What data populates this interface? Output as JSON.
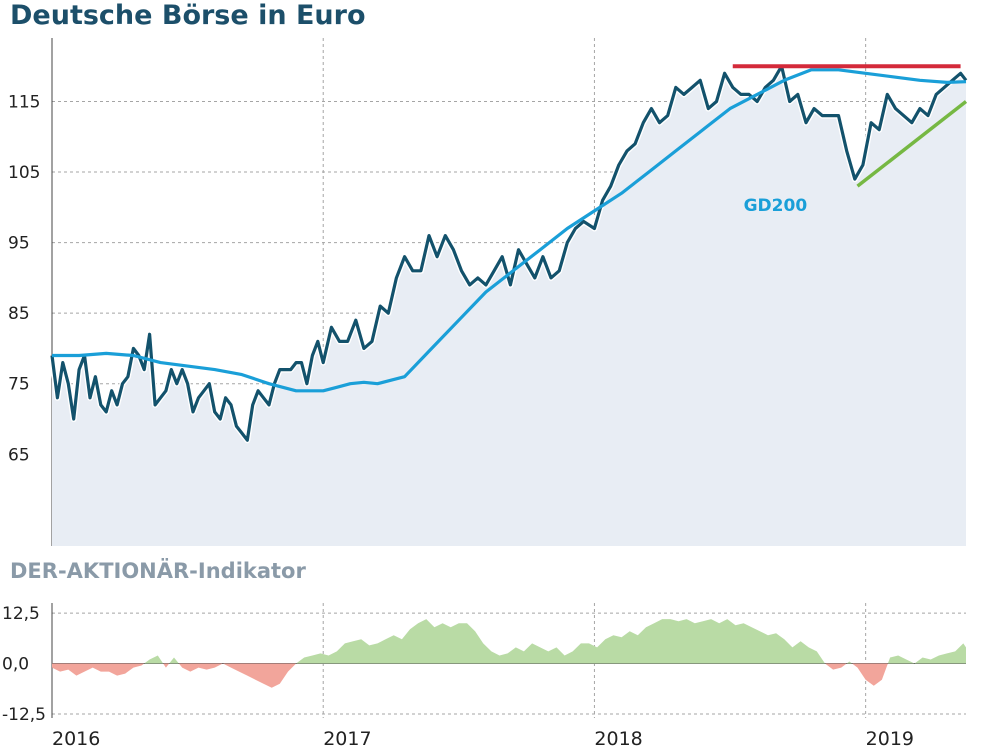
{
  "title": "Deutsche Börse in Euro",
  "colors": {
    "price_line": "#13526c",
    "gd200_line": "#1a9fd8",
    "area_fill": "#e8edf4",
    "resistance": "#d42a3a",
    "support": "#76b843",
    "indicator_positive": "#b9dba5",
    "indicator_negative": "#f2a59b",
    "grid": "#a5a5a5"
  },
  "chart_data": [
    {
      "type": "line",
      "title": "Deutsche Börse in Euro",
      "xlabel": "",
      "ylabel": "",
      "x_ticks": [
        "2016",
        "2017",
        "2018",
        "2019"
      ],
      "y_ticks": [
        65,
        75,
        85,
        95,
        105,
        115
      ],
      "ylim": [
        52,
        124
      ],
      "xlim": [
        2016.0,
        2019.37
      ],
      "grid": true,
      "annotations": [
        {
          "text": "GD200",
          "x": 2018.55,
          "y": 99.5
        },
        {
          "type": "resistance-line",
          "x": [
            2018.51,
            2019.35
          ],
          "y": [
            120,
            120
          ]
        },
        {
          "type": "support-line",
          "x": [
            2018.97,
            2019.37
          ],
          "y": [
            103,
            115
          ]
        }
      ],
      "series": [
        {
          "name": "",
          "x": [
            2016.0,
            2016.02,
            2016.04,
            2016.06,
            2016.08,
            2016.1,
            2016.12,
            2016.14,
            2016.16,
            2016.18,
            2016.2,
            2016.22,
            2016.24,
            2016.26,
            2016.28,
            2016.3,
            2016.32,
            2016.34,
            2016.36,
            2016.38,
            2016.4,
            2016.42,
            2016.44,
            2016.46,
            2016.48,
            2016.5,
            2016.52,
            2016.54,
            2016.56,
            2016.58,
            2016.6,
            2016.62,
            2016.64,
            2016.66,
            2016.68,
            2016.7,
            2016.72,
            2016.74,
            2016.76,
            2016.78,
            2016.8,
            2016.82,
            2016.84,
            2016.86,
            2016.88,
            2016.9,
            2016.92,
            2016.94,
            2016.96,
            2016.98,
            2017.0,
            2017.03,
            2017.06,
            2017.09,
            2017.12,
            2017.15,
            2017.18,
            2017.21,
            2017.24,
            2017.27,
            2017.3,
            2017.33,
            2017.36,
            2017.39,
            2017.42,
            2017.45,
            2017.48,
            2017.51,
            2017.54,
            2017.57,
            2017.6,
            2017.63,
            2017.66,
            2017.69,
            2017.72,
            2017.75,
            2017.78,
            2017.81,
            2017.84,
            2017.87,
            2017.9,
            2017.93,
            2017.96,
            2018.0,
            2018.03,
            2018.06,
            2018.09,
            2018.12,
            2018.15,
            2018.18,
            2018.21,
            2018.24,
            2018.27,
            2018.3,
            2018.33,
            2018.36,
            2018.39,
            2018.42,
            2018.45,
            2018.48,
            2018.51,
            2018.54,
            2018.57,
            2018.6,
            2018.63,
            2018.66,
            2018.69,
            2018.72,
            2018.75,
            2018.78,
            2018.81,
            2018.84,
            2018.87,
            2018.9,
            2018.93,
            2018.96,
            2018.99,
            2019.02,
            2019.05,
            2019.08,
            2019.11,
            2019.14,
            2019.17,
            2019.2,
            2019.23,
            2019.26,
            2019.29,
            2019.32,
            2019.35,
            2019.37
          ],
          "values": [
            79,
            73,
            78,
            75,
            70,
            77,
            79,
            73,
            76,
            72,
            71,
            74,
            72,
            75,
            76,
            80,
            79,
            77,
            82,
            72,
            73,
            74,
            77,
            75,
            77,
            75,
            71,
            73,
            74,
            75,
            71,
            70,
            73,
            72,
            69,
            68,
            67,
            72,
            74,
            73,
            72,
            75,
            77,
            77,
            77,
            78,
            78,
            75,
            79,
            81,
            78,
            83,
            81,
            81,
            84,
            80,
            81,
            86,
            85,
            90,
            93,
            91,
            91,
            96,
            93,
            96,
            94,
            91,
            89,
            90,
            89,
            91,
            93,
            89,
            94,
            92,
            90,
            93,
            90,
            91,
            95,
            97,
            98,
            97,
            101,
            103,
            106,
            108,
            109,
            112,
            114,
            112,
            113,
            117,
            116,
            117,
            118,
            114,
            115,
            119,
            117,
            116,
            116,
            115,
            117,
            118,
            120,
            115,
            116,
            112,
            114,
            113,
            113,
            113,
            108,
            104,
            106,
            112,
            111,
            116,
            114,
            113,
            112,
            114,
            113,
            116,
            117,
            118,
            119,
            118
          ]
        },
        {
          "name": "GD200",
          "x": [
            2016.0,
            2016.1,
            2016.2,
            2016.3,
            2016.4,
            2016.5,
            2016.6,
            2016.7,
            2016.8,
            2016.9,
            2017.0,
            2017.05,
            2017.1,
            2017.15,
            2017.2,
            2017.3,
            2017.4,
            2017.5,
            2017.6,
            2017.7,
            2017.8,
            2017.9,
            2018.0,
            2018.1,
            2018.2,
            2018.3,
            2018.4,
            2018.5,
            2018.6,
            2018.7,
            2018.8,
            2018.9,
            2019.0,
            2019.1,
            2019.2,
            2019.3,
            2019.37
          ],
          "values": [
            79,
            79,
            79.3,
            79,
            78,
            77.5,
            77,
            76.3,
            75,
            74,
            74,
            74.5,
            75,
            75.2,
            75,
            76,
            80,
            84,
            88,
            91,
            94,
            97,
            99.5,
            102,
            105,
            108,
            111,
            114,
            116,
            118,
            119.5,
            119.5,
            119,
            118.5,
            118,
            117.7,
            117.8
          ]
        }
      ]
    },
    {
      "type": "area",
      "title": "DER-AKTIONÄR-Indikator",
      "y_ticks": [
        "12,5",
        "0,0",
        "-12,5"
      ],
      "y_tick_values": [
        12.5,
        0,
        -12.5
      ],
      "ylim": [
        -13.5,
        15
      ],
      "xlim": [
        2016.0,
        2019.37
      ],
      "grid": true,
      "series": [
        {
          "name": "",
          "x": [
            2016.0,
            2016.03,
            2016.06,
            2016.09,
            2016.12,
            2016.15,
            2016.18,
            2016.21,
            2016.24,
            2016.27,
            2016.3,
            2016.33,
            2016.36,
            2016.39,
            2016.42,
            2016.45,
            2016.48,
            2016.51,
            2016.54,
            2016.57,
            2016.6,
            2016.63,
            2016.66,
            2016.69,
            2016.72,
            2016.75,
            2016.78,
            2016.81,
            2016.84,
            2016.87,
            2016.9,
            2016.93,
            2016.96,
            2016.99,
            2017.02,
            2017.05,
            2017.08,
            2017.11,
            2017.14,
            2017.17,
            2017.2,
            2017.23,
            2017.26,
            2017.29,
            2017.32,
            2017.35,
            2017.38,
            2017.41,
            2017.44,
            2017.47,
            2017.5,
            2017.53,
            2017.56,
            2017.59,
            2017.62,
            2017.65,
            2017.68,
            2017.71,
            2017.74,
            2017.77,
            2017.8,
            2017.83,
            2017.86,
            2017.89,
            2017.92,
            2017.95,
            2017.98,
            2018.01,
            2018.04,
            2018.07,
            2018.1,
            2018.13,
            2018.16,
            2018.19,
            2018.22,
            2018.25,
            2018.28,
            2018.31,
            2018.34,
            2018.37,
            2018.4,
            2018.43,
            2018.46,
            2018.49,
            2018.52,
            2018.55,
            2018.58,
            2018.61,
            2018.64,
            2018.67,
            2018.7,
            2018.73,
            2018.76,
            2018.79,
            2018.82,
            2018.85,
            2018.88,
            2018.91,
            2018.94,
            2018.97,
            2019.0,
            2019.03,
            2019.06,
            2019.09,
            2019.12,
            2019.15,
            2019.18,
            2019.21,
            2019.24,
            2019.27,
            2019.3,
            2019.33,
            2019.36,
            2019.37
          ],
          "values": [
            -1,
            -2,
            -1.5,
            -3,
            -2,
            -1,
            -2,
            -2,
            -3,
            -2.5,
            -1,
            -0.5,
            1,
            2,
            -1,
            1.5,
            -1,
            -2,
            -1,
            -1.5,
            -1,
            0,
            -1,
            -2,
            -3,
            -4,
            -5,
            -6,
            -5,
            -2,
            0,
            1.5,
            2,
            2.5,
            2,
            3,
            5,
            5.5,
            6,
            4.5,
            5,
            6,
            7,
            6,
            8.5,
            10,
            11,
            9,
            10,
            9,
            10,
            10,
            8,
            5,
            3,
            2,
            2.5,
            4,
            3,
            5,
            4,
            3,
            4,
            2,
            3,
            5,
            5,
            4,
            6,
            7,
            6.5,
            8,
            7,
            9,
            10,
            11,
            11,
            10.5,
            11,
            10,
            10.5,
            11,
            10,
            11,
            9.5,
            10,
            9,
            8,
            7,
            7.5,
            6,
            4,
            5.5,
            4,
            3,
            0,
            -1.5,
            -1,
            0.5,
            -1,
            -4,
            -5.5,
            -4,
            1.5,
            2,
            1,
            0,
            1.5,
            1,
            2,
            2.5,
            3,
            5,
            4
          ]
        }
      ]
    }
  ]
}
